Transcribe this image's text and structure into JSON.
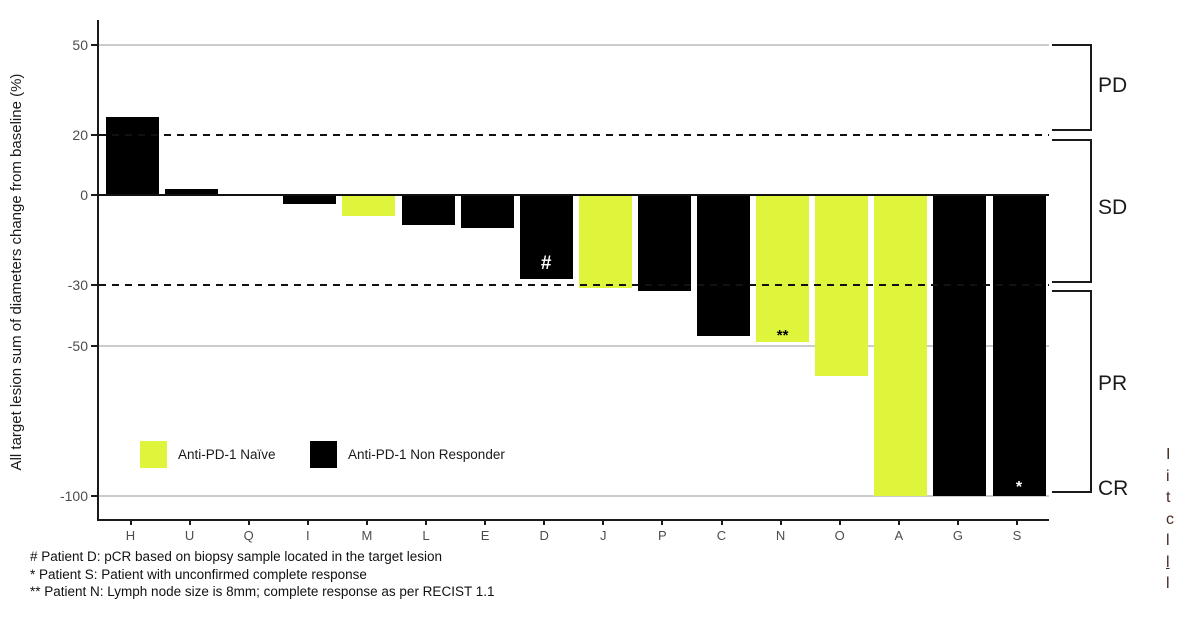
{
  "figure": {
    "ylabel": "All target lesion sum of diameters change from baseline (%)"
  },
  "chart_data": {
    "type": "bar",
    "title": "",
    "xlabel": "",
    "ylabel": "All target lesion sum of diameters change from baseline (%)",
    "categories": [
      "H",
      "U",
      "Q",
      "I",
      "M",
      "L",
      "E",
      "D",
      "J",
      "P",
      "C",
      "N",
      "O",
      "A",
      "G",
      "S"
    ],
    "values": [
      26,
      2,
      0,
      -3,
      -7,
      -10,
      -11,
      -28,
      -31,
      -32,
      -47,
      -49,
      -60,
      -100,
      -100,
      -100
    ],
    "groups": [
      "non_responder",
      "non_responder",
      "non_responder",
      "non_responder",
      "naive",
      "non_responder",
      "non_responder",
      "non_responder",
      "naive",
      "non_responder",
      "non_responder",
      "naive",
      "naive",
      "naive",
      "non_responder",
      "non_responder"
    ],
    "yticks": [
      50,
      20,
      0,
      -30,
      -50,
      -100
    ],
    "gridlines_at": [
      50,
      -50,
      -100
    ],
    "dashed_reference_lines": [
      20,
      -30
    ],
    "zero_line": 0,
    "ylim": [
      58,
      -108
    ],
    "grid": "horizontal-only",
    "legend_position": "inside-lower-left",
    "bar_annotations": [
      {
        "category": "D",
        "symbol": "#",
        "color": "#ffffff"
      },
      {
        "category": "N",
        "symbol": "**",
        "color": "#000000"
      },
      {
        "category": "S",
        "symbol": "*",
        "color": "#ffffff"
      }
    ],
    "response_regions": [
      {
        "label": "PD",
        "from": "top",
        "to": 20
      },
      {
        "label": "SD",
        "from": 20,
        "to": -30
      },
      {
        "label": "PR",
        "from": -30,
        "to": -100
      },
      {
        "label": "CR",
        "at": -100
      }
    ]
  },
  "legend": {
    "naive_label": "Anti-PD-1 Naïve",
    "non_responder_label": "Anti-PD-1 Non Responder"
  },
  "response_labels": {
    "pd": "PD",
    "sd": "SD",
    "pr": "PR",
    "cr": "CR"
  },
  "footnotes": [
    "# Patient D: pCR based on biopsy sample located in the target lesion",
    "* Patient S: Patient with unconfirmed complete response",
    "** Patient N: Lymph node size is 8mm; complete response as per RECIST 1.1"
  ],
  "clipped_caption_lines": [
    {
      "text": "I",
      "underlined": false
    },
    {
      "text": "i",
      "underlined": false
    },
    {
      "text": "t",
      "underlined": false
    },
    {
      "text": "c",
      "underlined": false
    },
    {
      "text": "l",
      "underlined": false
    },
    {
      "text": "l",
      "underlined": true
    },
    {
      "text": "l",
      "underlined": false
    }
  ],
  "colors": {
    "naive": "#DFF53C",
    "non_responder": "#000000",
    "gridline": "#cccccc",
    "axis_line": "#1a1a1a",
    "tick_label": "#4d4d4d",
    "background": "#ffffff",
    "clipped_text": "#4a2a22"
  }
}
